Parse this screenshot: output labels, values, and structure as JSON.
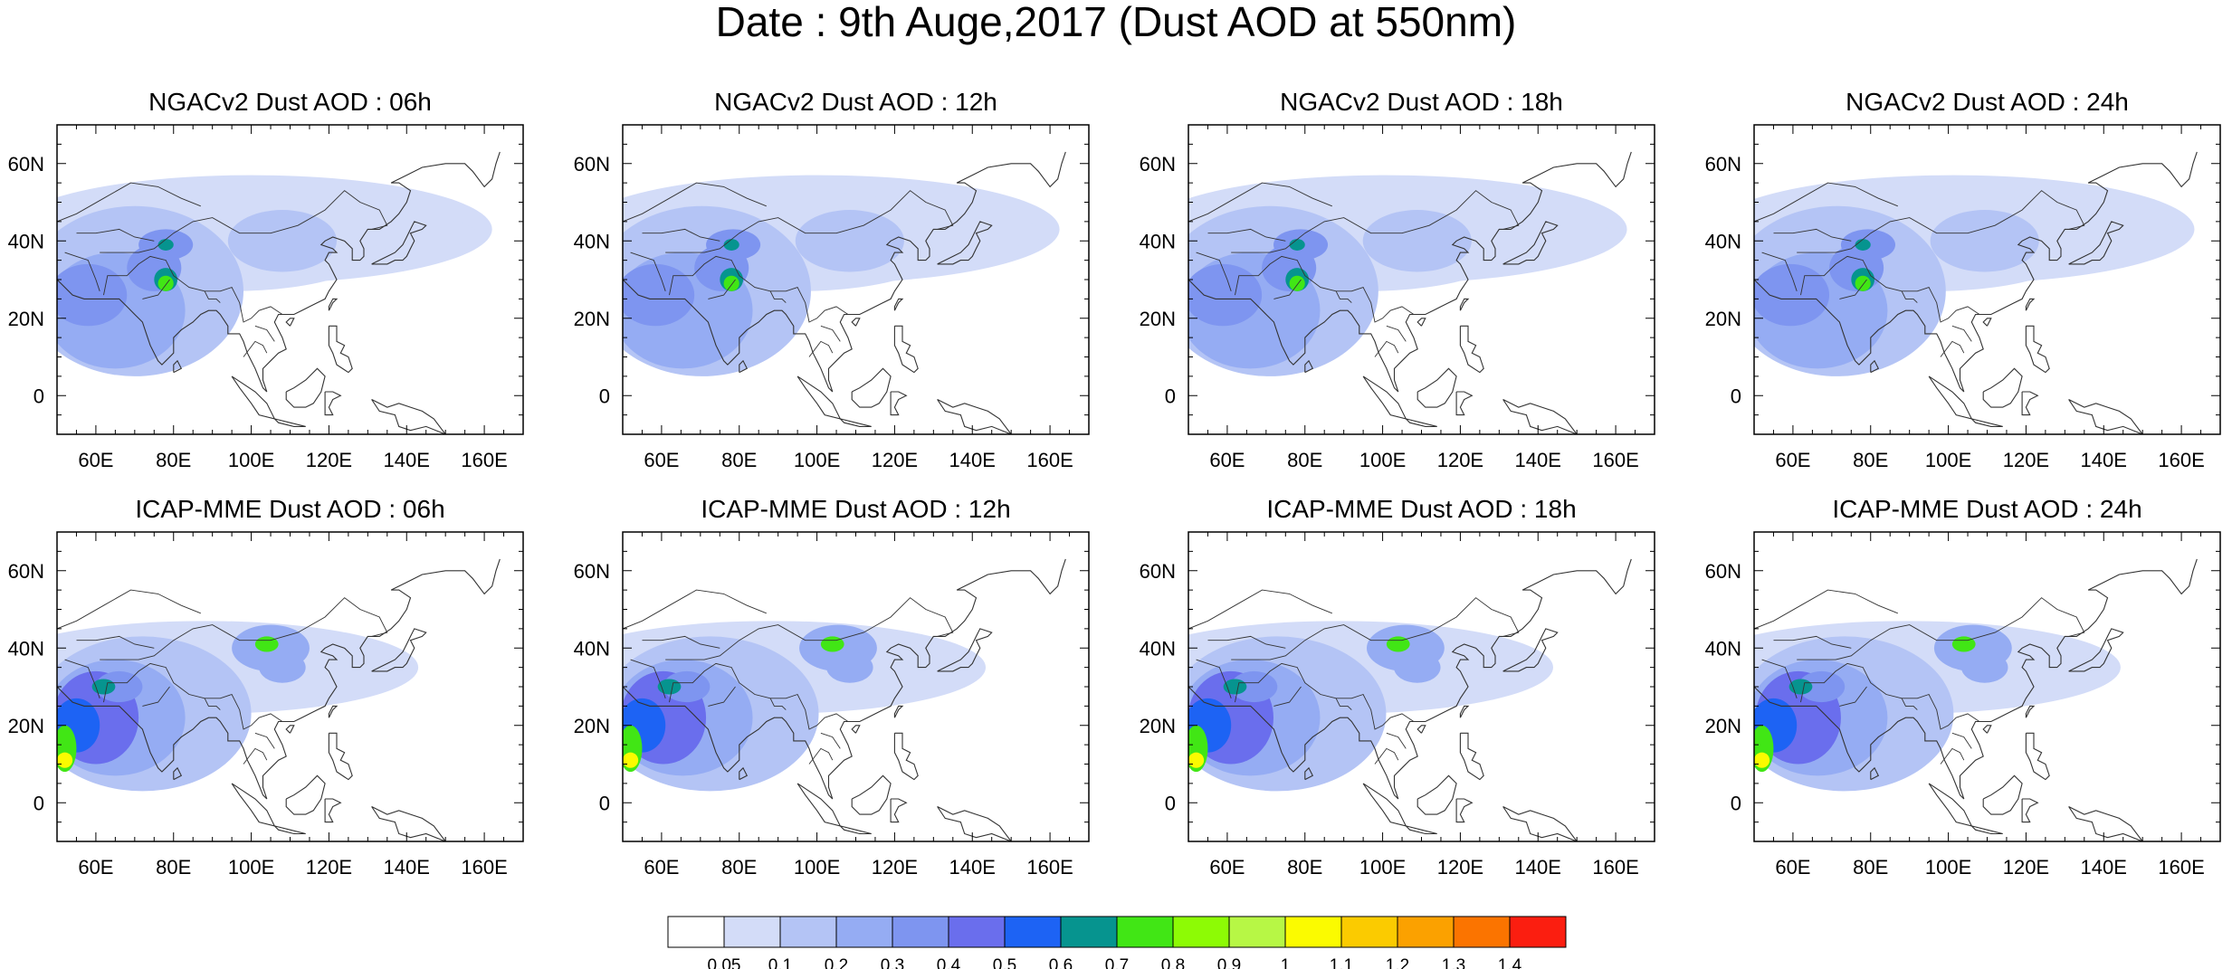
{
  "title": "Date : 9th Auge,2017 (Dust AOD at 550nm)",
  "lon_ticks": [
    "60E",
    "80E",
    "100E",
    "120E",
    "140E",
    "160E"
  ],
  "lat_ticks": [
    "60N",
    "40N",
    "20N",
    "0"
  ],
  "lon_range": [
    50,
    170
  ],
  "lat_range": [
    -10,
    70
  ],
  "panels": [
    {
      "title": "NGACv2 Dust AOD : 06h",
      "model": "ngac",
      "hour": "06h"
    },
    {
      "title": "NGACv2 Dust AOD : 12h",
      "model": "ngac",
      "hour": "12h"
    },
    {
      "title": "NGACv2 Dust AOD : 18h",
      "model": "ngac",
      "hour": "18h"
    },
    {
      "title": "NGACv2 Dust AOD : 24h",
      "model": "ngac",
      "hour": "24h"
    },
    {
      "title": "ICAP-MME Dust AOD : 06h",
      "model": "icap",
      "hour": "06h"
    },
    {
      "title": "ICAP-MME Dust AOD : 12h",
      "model": "icap",
      "hour": "12h"
    },
    {
      "title": "ICAP-MME Dust AOD : 18h",
      "model": "icap",
      "hour": "18h"
    },
    {
      "title": "ICAP-MME Dust AOD : 24h",
      "model": "icap",
      "hour": "24h"
    }
  ],
  "colorbar": {
    "labels": [
      "0.05",
      "0.1",
      "0.2",
      "0.3",
      "0.4",
      "0.5",
      "0.6",
      "0.7",
      "0.8",
      "0.9",
      "1",
      "1.1",
      "1.2",
      "1.3",
      "1.4"
    ],
    "colors": [
      "#ffffff",
      "#d3dcf8",
      "#b4c4f5",
      "#95acf3",
      "#7e95f0",
      "#6a6eed",
      "#1d63f4",
      "#06948f",
      "#41e615",
      "#8dfb05",
      "#b7f745",
      "#fbfb00",
      "#fbcb00",
      "#fba100",
      "#fb7400",
      "#fb1e10"
    ]
  }
}
